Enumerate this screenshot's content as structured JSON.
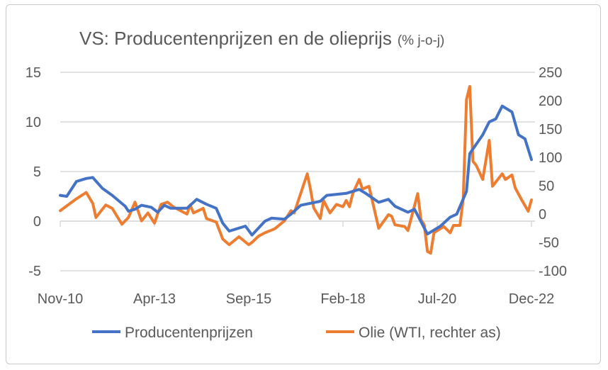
{
  "chart_data": {
    "type": "line",
    "title": "VS: Producentenprijzen en de olieprijs",
    "subtitle": "(% j-o-j)",
    "x_tick_labels": [
      "Nov-10",
      "Apr-13",
      "Sep-15",
      "Feb-18",
      "Jul-20",
      "Dec-22"
    ],
    "x_range": [
      "2010-11",
      "2022-12"
    ],
    "y_left": {
      "ylim": [
        -5,
        15
      ],
      "ticks": [
        "15",
        "10",
        "5",
        "0",
        "-5"
      ],
      "tick_values": [
        15,
        10,
        5,
        0,
        -5
      ]
    },
    "y_right": {
      "ylim": [
        -100,
        250
      ],
      "ticks": [
        "250",
        "200",
        "150",
        "100",
        "50",
        "0",
        "-50",
        "-100"
      ],
      "tick_values": [
        250,
        200,
        150,
        100,
        50,
        0,
        -50,
        -100
      ]
    },
    "grid": "horizontal",
    "legend_position": "bottom",
    "series": [
      {
        "name": "Producentenprijzen",
        "axis": "left",
        "color": "#4472C4",
        "x": [
          "2010-11",
          "2011-01",
          "2011-04",
          "2011-07",
          "2011-09",
          "2011-12",
          "2012-03",
          "2012-07",
          "2012-08",
          "2012-10",
          "2012-12",
          "2013-03",
          "2013-05",
          "2013-07",
          "2013-09",
          "2014-02",
          "2014-05",
          "2014-08",
          "2014-11",
          "2015-01",
          "2015-03",
          "2015-05",
          "2015-08",
          "2015-10",
          "2016-02",
          "2016-04",
          "2016-08",
          "2016-10",
          "2017-01",
          "2017-07",
          "2017-09",
          "2018-03",
          "2018-07",
          "2018-09",
          "2019-01",
          "2019-04",
          "2019-06",
          "2019-10",
          "2019-12",
          "2020-04",
          "2020-08",
          "2020-11",
          "2021-01",
          "2021-04",
          "2021-05",
          "2021-09",
          "2021-11",
          "2022-01",
          "2022-03",
          "2022-06",
          "2022-08",
          "2022-10",
          "2022-12"
        ],
        "values": [
          2.6,
          2.5,
          4.0,
          4.3,
          4.4,
          3.3,
          2.6,
          1.5,
          1.0,
          1.2,
          1.6,
          1.4,
          0.9,
          1.6,
          1.3,
          1.3,
          2.2,
          1.7,
          1.3,
          -0.2,
          -1.0,
          -0.8,
          -0.5,
          -1.4,
          0.0,
          0.3,
          0.2,
          0.7,
          1.6,
          2.0,
          2.6,
          2.8,
          3.2,
          2.8,
          1.9,
          2.2,
          1.5,
          0.9,
          1.2,
          -1.3,
          -0.5,
          0.4,
          0.7,
          3.0,
          6.8,
          8.7,
          10.0,
          10.3,
          11.6,
          11.0,
          8.7,
          8.3,
          6.2
        ]
      },
      {
        "name": "Olie (WTI, rechter as)",
        "axis": "right",
        "color": "#ED7D31",
        "x": [
          "2010-11",
          "2011-04",
          "2011-07",
          "2011-09",
          "2011-10",
          "2012-01",
          "2012-03",
          "2012-06",
          "2012-08",
          "2012-10",
          "2012-12",
          "2013-02",
          "2013-04",
          "2013-06",
          "2013-08",
          "2013-10",
          "2014-02",
          "2014-03",
          "2014-04",
          "2014-07",
          "2014-08",
          "2014-11",
          "2015-01",
          "2015-03",
          "2015-06",
          "2015-09",
          "2015-10",
          "2015-12",
          "2016-02",
          "2016-05",
          "2016-08",
          "2016-10",
          "2016-11",
          "2017-03",
          "2017-04",
          "2017-05",
          "2017-07",
          "2017-08",
          "2017-10",
          "2017-12",
          "2018-02",
          "2018-03",
          "2018-04",
          "2018-05",
          "2018-07",
          "2018-08",
          "2018-10",
          "2019-01",
          "2019-04",
          "2019-05",
          "2019-06",
          "2019-09",
          "2019-10",
          "2020-01",
          "2020-02",
          "2020-03",
          "2020-04",
          "2020-05",
          "2020-06",
          "2020-09",
          "2020-11",
          "2020-12",
          "2021-02",
          "2021-03",
          "2021-04",
          "2021-05",
          "2021-06",
          "2021-07",
          "2021-09",
          "2021-11",
          "2021-12",
          "2022-03",
          "2022-04",
          "2022-06",
          "2022-07",
          "2022-09",
          "2022-11",
          "2022-12"
        ],
        "values": [
          6,
          27,
          38,
          19,
          -6,
          16,
          10,
          -18,
          -6,
          21,
          -12,
          2,
          -16,
          17,
          21,
          12,
          0,
          16,
          2,
          10,
          -8,
          -14,
          -44,
          -54,
          -40,
          -54,
          -50,
          -39,
          -33,
          -26,
          -12,
          6,
          2,
          71,
          44,
          11,
          -8,
          24,
          2,
          17,
          13,
          24,
          13,
          36,
          61,
          44,
          49,
          -25,
          -1,
          -4,
          -19,
          -22,
          -29,
          36,
          -10,
          -19,
          -66,
          -69,
          -33,
          -22,
          -33,
          -20,
          -20,
          27,
          202,
          225,
          93,
          86,
          61,
          130,
          49,
          71,
          61,
          69,
          46,
          25,
          5,
          25
        ]
      }
    ]
  }
}
